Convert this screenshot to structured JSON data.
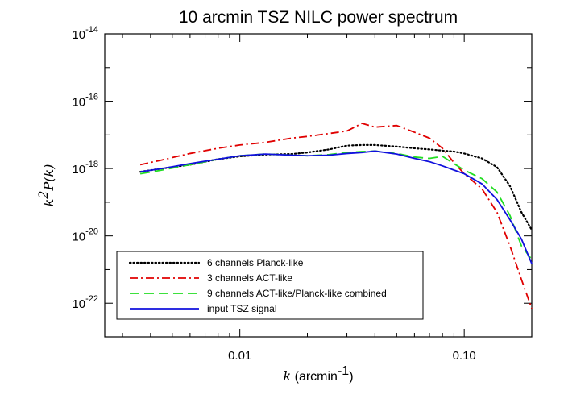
{
  "chart_data": {
    "type": "line",
    "title": "10 arcmin TSZ NILC power spectrum",
    "xlabel": {
      "var": "k",
      "unit_pre": " (arcmin",
      "unit_exp": "-1",
      "unit_post": ")"
    },
    "ylabel": {
      "var": "k",
      "var_exp": "2",
      "func": "P(k)"
    },
    "xscale": "log",
    "yscale": "log",
    "xlim": [
      0.0025,
      0.2
    ],
    "ylim": [
      1e-23,
      1e-14
    ],
    "x_ticks": [
      {
        "value": 0.01,
        "label": "0.01"
      },
      {
        "value": 0.1,
        "label": "0.10"
      }
    ],
    "y_ticks": [
      {
        "value": 1e-22,
        "base": "10",
        "exp": "-22"
      },
      {
        "value": 1e-20,
        "base": "10",
        "exp": "-20"
      },
      {
        "value": 1e-18,
        "base": "10",
        "exp": "-18"
      },
      {
        "value": 1e-16,
        "base": "10",
        "exp": "-16"
      },
      {
        "value": 1e-14,
        "base": "10",
        "exp": "-14"
      }
    ],
    "grid": false,
    "legend_position": "bottom-left",
    "series": [
      {
        "name": "6 channels Planck-like",
        "color": "#000000",
        "style": "dotted",
        "x": [
          0.0036,
          0.0045,
          0.006,
          0.008,
          0.01,
          0.013,
          0.017,
          0.02,
          0.025,
          0.03,
          0.035,
          0.04,
          0.05,
          0.06,
          0.07,
          0.08,
          0.09,
          0.1,
          0.12,
          0.14,
          0.16,
          0.18,
          0.2
        ],
        "y": [
          8e-19,
          1e-18,
          1.3e-18,
          1.9e-18,
          2.3e-18,
          2.6e-18,
          2.7e-18,
          3e-18,
          3.7e-18,
          4.8e-18,
          5e-18,
          5e-18,
          4.5e-18,
          4e-18,
          3.7e-18,
          3.4e-18,
          3.2e-18,
          2.8e-18,
          2e-18,
          1.1e-18,
          3e-19,
          5e-20,
          1.5e-20
        ]
      },
      {
        "name": "3 channels ACT-like",
        "color": "#e00000",
        "style": "dashdot",
        "x": [
          0.0036,
          0.0045,
          0.006,
          0.008,
          0.01,
          0.013,
          0.017,
          0.02,
          0.025,
          0.03,
          0.035,
          0.04,
          0.05,
          0.06,
          0.07,
          0.08,
          0.09,
          0.1,
          0.12,
          0.14,
          0.16,
          0.18,
          0.2
        ],
        "y": [
          1.3e-18,
          1.8e-18,
          2.8e-18,
          4e-18,
          5e-18,
          6e-18,
          8e-18,
          9e-18,
          1.1e-17,
          1.3e-17,
          2.2e-17,
          1.7e-17,
          1.9e-17,
          1.2e-17,
          8e-18,
          4e-18,
          1.5e-18,
          7e-19,
          2.5e-19,
          5e-20,
          5e-21,
          5e-22,
          7e-23
        ]
      },
      {
        "name": "9 channels ACT-like/Planck-like combined",
        "color": "#22dd22",
        "style": "dashed",
        "x": [
          0.0036,
          0.0045,
          0.006,
          0.008,
          0.01,
          0.013,
          0.017,
          0.02,
          0.025,
          0.03,
          0.035,
          0.04,
          0.05,
          0.06,
          0.07,
          0.08,
          0.09,
          0.1,
          0.12,
          0.14,
          0.16,
          0.18,
          0.2
        ],
        "y": [
          7e-19,
          9e-19,
          1.3e-18,
          1.9e-18,
          2.4e-18,
          2.7e-18,
          2.5e-18,
          2.4e-18,
          2.6e-18,
          3e-18,
          3.2e-18,
          3.3e-18,
          2.8e-18,
          2.2e-18,
          2e-18,
          2.3e-18,
          1.4e-18,
          9e-19,
          5e-19,
          2e-19,
          4e-20,
          5e-21,
          2e-21
        ]
      },
      {
        "name": "input TSZ signal",
        "color": "#1010dd",
        "style": "solid",
        "x": [
          0.0036,
          0.0045,
          0.006,
          0.008,
          0.01,
          0.013,
          0.017,
          0.02,
          0.025,
          0.03,
          0.035,
          0.04,
          0.05,
          0.06,
          0.07,
          0.08,
          0.09,
          0.1,
          0.12,
          0.14,
          0.16,
          0.18,
          0.2
        ],
        "y": [
          8e-19,
          1e-18,
          1.4e-18,
          1.9e-18,
          2.4e-18,
          2.7e-18,
          2.5e-18,
          2.4e-18,
          2.5e-18,
          2.8e-18,
          3e-18,
          3.3e-18,
          2.7e-18,
          2e-18,
          1.6e-18,
          1.2e-18,
          9e-19,
          7e-19,
          3.5e-19,
          1.2e-19,
          3e-20,
          8e-21,
          1.5e-21
        ]
      }
    ]
  }
}
